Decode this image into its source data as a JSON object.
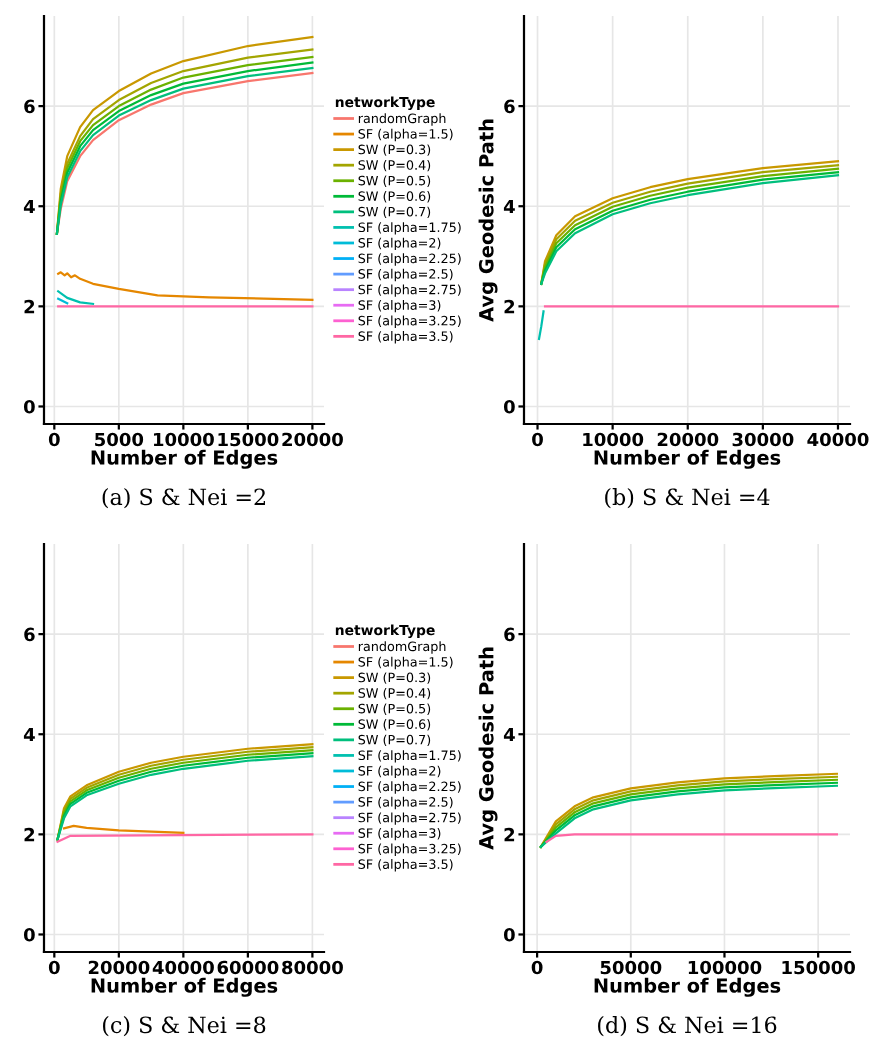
{
  "chart_data": [
    {
      "type": "line",
      "xlabel": "Number of Edges",
      "legend_title": "networkType",
      "legend": "right",
      "grid": true,
      "annotations": [
        "(a) S & Nei =2"
      ],
      "xlim": [
        -800,
        20900
      ],
      "xticks": [
        0,
        5000,
        10000,
        15000,
        20000
      ],
      "ylim": [
        -0.35,
        7.8
      ],
      "yticks": [
        0,
        2,
        4,
        6
      ],
      "series": [
        {
          "name": "randomGraph",
          "color": "#F8766D",
          "x": [
            200,
            500,
            1000,
            2000,
            3000,
            5000,
            7500,
            10000,
            15000,
            20000
          ],
          "values": [
            3.45,
            3.95,
            4.5,
            5.0,
            5.32,
            5.72,
            6.03,
            6.26,
            6.5,
            6.66
          ]
        },
        {
          "name": "SF (alpha=1.5)",
          "color": "#E58700",
          "x": [
            300,
            500,
            800,
            1000,
            1300,
            1600,
            2000,
            3000,
            5000,
            8000,
            12000,
            20000
          ],
          "values": [
            2.65,
            2.68,
            2.62,
            2.66,
            2.58,
            2.62,
            2.55,
            2.45,
            2.35,
            2.22,
            2.18,
            2.13
          ]
        },
        {
          "name": "SW (P=0.3)",
          "color": "#C99800",
          "x": [
            200,
            500,
            1000,
            2000,
            3000,
            5000,
            7500,
            10000,
            15000,
            20000
          ],
          "values": [
            3.45,
            4.35,
            5.0,
            5.58,
            5.92,
            6.3,
            6.65,
            6.9,
            7.2,
            7.38
          ]
        },
        {
          "name": "SW (P=0.4)",
          "color": "#A3A500",
          "x": [
            200,
            500,
            1000,
            2000,
            3000,
            5000,
            7500,
            10000,
            15000,
            20000
          ],
          "values": [
            3.45,
            4.25,
            4.85,
            5.4,
            5.74,
            6.12,
            6.46,
            6.7,
            6.97,
            7.13
          ]
        },
        {
          "name": "SW (P=0.5)",
          "color": "#6BB100",
          "x": [
            200,
            500,
            1000,
            2000,
            3000,
            5000,
            7500,
            10000,
            15000,
            20000
          ],
          "values": [
            3.45,
            4.18,
            4.76,
            5.3,
            5.62,
            6.0,
            6.33,
            6.57,
            6.82,
            6.98
          ]
        },
        {
          "name": "SW (P=0.6)",
          "color": "#00BA38",
          "x": [
            200,
            500,
            1000,
            2000,
            3000,
            5000,
            7500,
            10000,
            15000,
            20000
          ],
          "values": [
            3.45,
            4.1,
            4.67,
            5.2,
            5.52,
            5.9,
            6.22,
            6.45,
            6.7,
            6.87
          ]
        },
        {
          "name": "SW (P=0.7)",
          "color": "#00BF7D",
          "x": [
            200,
            500,
            1000,
            2000,
            3000,
            5000,
            7500,
            10000,
            15000,
            20000
          ],
          "values": [
            3.45,
            4.03,
            4.58,
            5.1,
            5.42,
            5.81,
            6.12,
            6.35,
            6.6,
            6.76
          ]
        },
        {
          "name": "SF (alpha=1.75)",
          "color": "#00C0AF",
          "x": [
            300,
            1000,
            2000,
            3000
          ],
          "values": [
            2.3,
            2.17,
            2.08,
            2.05
          ]
        },
        {
          "name": "SF (alpha=2)",
          "color": "#00BCD8",
          "x": [
            300,
            1000
          ],
          "values": [
            2.15,
            2.06
          ]
        },
        {
          "name": "SF (alpha=2.25)",
          "color": "#00B0F6"
        },
        {
          "name": "SF (alpha=2.5)",
          "color": "#619CFF"
        },
        {
          "name": "SF (alpha=2.75)",
          "color": "#B983FF"
        },
        {
          "name": "SF (alpha=3)",
          "color": "#E76BF3"
        },
        {
          "name": "SF (alpha=3.25)",
          "color": "#FD61D1"
        },
        {
          "name": "SF (alpha=3.5)",
          "color": "#FF67A4",
          "x": [
            300,
            20000
          ],
          "values": [
            2.0,
            2.0
          ]
        }
      ]
    },
    {
      "type": "line",
      "xlabel": "Number of Edges",
      "ylabel": "Avg Geodesic Path",
      "grid": true,
      "annotations": [
        "(b) S & Nei =4"
      ],
      "xlim": [
        -1800,
        41600
      ],
      "xticks": [
        0,
        10000,
        20000,
        30000,
        40000
      ],
      "ylim": [
        -0.35,
        7.8
      ],
      "yticks": [
        0,
        2,
        4,
        6
      ],
      "series": [
        {
          "color": "#C99800",
          "x": [
            500,
            1000,
            2500,
            5000,
            10000,
            15000,
            20000,
            30000,
            40000
          ],
          "values": [
            2.45,
            2.9,
            3.42,
            3.8,
            4.16,
            4.38,
            4.54,
            4.76,
            4.9
          ]
        },
        {
          "color": "#A3A500",
          "x": [
            500,
            1000,
            2500,
            5000,
            10000,
            15000,
            20000,
            30000,
            40000
          ],
          "values": [
            2.45,
            2.84,
            3.34,
            3.71,
            4.07,
            4.29,
            4.45,
            4.68,
            4.82
          ]
        },
        {
          "color": "#6BB100",
          "x": [
            500,
            1000,
            2500,
            5000,
            10000,
            15000,
            20000,
            30000,
            40000
          ],
          "values": [
            2.45,
            2.78,
            3.26,
            3.62,
            3.99,
            4.21,
            4.37,
            4.6,
            4.75
          ]
        },
        {
          "color": "#00BA38",
          "x": [
            500,
            1000,
            2500,
            5000,
            10000,
            15000,
            20000,
            30000,
            40000
          ],
          "values": [
            2.45,
            2.72,
            3.18,
            3.54,
            3.91,
            4.13,
            4.29,
            4.53,
            4.68
          ]
        },
        {
          "color": "#00BF7D",
          "x": [
            500,
            1000,
            2500,
            5000,
            10000,
            15000,
            20000,
            30000,
            40000
          ],
          "values": [
            2.45,
            2.66,
            3.1,
            3.46,
            3.84,
            4.06,
            4.22,
            4.46,
            4.62
          ]
        },
        {
          "color": "#00C0AF",
          "x": [
            200,
            500,
            800
          ],
          "values": [
            1.35,
            1.6,
            1.9
          ]
        },
        {
          "color": "#FF67A4",
          "x": [
            1000,
            40000
          ],
          "values": [
            2.0,
            2.0
          ]
        }
      ]
    },
    {
      "type": "line",
      "xlabel": "Number of Edges",
      "legend_title": "networkType",
      "legend": "right",
      "grid": true,
      "annotations": [
        "(c) S & Nei =8"
      ],
      "xlim": [
        -3200,
        83600
      ],
      "xticks": [
        0,
        20000,
        40000,
        60000,
        80000
      ],
      "ylim": [
        -0.35,
        7.8
      ],
      "yticks": [
        0,
        2,
        4,
        6
      ],
      "series": [
        {
          "name": "randomGraph",
          "color": "#F8766D"
        },
        {
          "name": "SF (alpha=1.5)",
          "color": "#E58700",
          "x": [
            3000,
            6000,
            10000,
            20000,
            40000
          ],
          "values": [
            2.12,
            2.17,
            2.13,
            2.08,
            2.03
          ]
        },
        {
          "name": "SW (P=0.3)",
          "color": "#C99800",
          "x": [
            1000,
            3000,
            5000,
            10000,
            20000,
            30000,
            40000,
            60000,
            80000
          ],
          "values": [
            1.9,
            2.52,
            2.76,
            2.98,
            3.25,
            3.43,
            3.55,
            3.71,
            3.8
          ]
        },
        {
          "name": "SW (P=0.4)",
          "color": "#A3A500",
          "x": [
            1000,
            3000,
            5000,
            10000,
            20000,
            30000,
            40000,
            60000,
            80000
          ],
          "values": [
            1.9,
            2.47,
            2.71,
            2.93,
            3.19,
            3.37,
            3.49,
            3.65,
            3.74
          ]
        },
        {
          "name": "SW (P=0.5)",
          "color": "#6BB100",
          "x": [
            1000,
            3000,
            5000,
            10000,
            20000,
            30000,
            40000,
            60000,
            80000
          ],
          "values": [
            1.9,
            2.42,
            2.66,
            2.88,
            3.13,
            3.31,
            3.43,
            3.59,
            3.68
          ]
        },
        {
          "name": "SW (P=0.6)",
          "color": "#00BA38",
          "x": [
            1000,
            3000,
            5000,
            10000,
            20000,
            30000,
            40000,
            60000,
            80000
          ],
          "values": [
            1.9,
            2.37,
            2.61,
            2.83,
            3.07,
            3.25,
            3.37,
            3.53,
            3.62
          ]
        },
        {
          "name": "SW (P=0.7)",
          "color": "#00BF7D",
          "x": [
            1000,
            3000,
            5000,
            10000,
            20000,
            30000,
            40000,
            60000,
            80000
          ],
          "values": [
            1.9,
            2.32,
            2.56,
            2.78,
            3.01,
            3.19,
            3.31,
            3.47,
            3.56
          ]
        },
        {
          "name": "SF (alpha=1.75)",
          "color": "#00C0AF"
        },
        {
          "name": "SF (alpha=2)",
          "color": "#00BCD8"
        },
        {
          "name": "SF (alpha=2.25)",
          "color": "#00B0F6"
        },
        {
          "name": "SF (alpha=2.5)",
          "color": "#619CFF"
        },
        {
          "name": "SF (alpha=2.75)",
          "color": "#B983FF"
        },
        {
          "name": "SF (alpha=3)",
          "color": "#E76BF3"
        },
        {
          "name": "SF (alpha=3.25)",
          "color": "#FD61D1"
        },
        {
          "name": "SF (alpha=3.5)",
          "color": "#FF67A4",
          "x": [
            1000,
            5000,
            80000
          ],
          "values": [
            1.85,
            1.97,
            2.0
          ]
        }
      ]
    },
    {
      "type": "line",
      "xlabel": "Number of Edges",
      "ylabel": "Avg Geodesic Path",
      "grid": true,
      "annotations": [
        "(d) S & Nei =16"
      ],
      "xlim": [
        -7000,
        167000
      ],
      "xticks": [
        0,
        50000,
        100000,
        150000
      ],
      "ylim": [
        -0.35,
        7.8
      ],
      "yticks": [
        0,
        2,
        4,
        6
      ],
      "series": [
        {
          "color": "#C99800",
          "x": [
            2000,
            10000,
            20000,
            30000,
            50000,
            75000,
            100000,
            130000,
            160000
          ],
          "values": [
            1.75,
            2.26,
            2.56,
            2.74,
            2.92,
            3.04,
            3.12,
            3.17,
            3.21
          ]
        },
        {
          "color": "#A3A500",
          "x": [
            2000,
            10000,
            20000,
            30000,
            50000,
            75000,
            100000,
            130000,
            160000
          ],
          "values": [
            1.75,
            2.2,
            2.5,
            2.68,
            2.86,
            2.98,
            3.06,
            3.11,
            3.15
          ]
        },
        {
          "color": "#6BB100",
          "x": [
            2000,
            10000,
            20000,
            30000,
            50000,
            75000,
            100000,
            130000,
            160000
          ],
          "values": [
            1.75,
            2.14,
            2.44,
            2.62,
            2.8,
            2.92,
            3.0,
            3.05,
            3.09
          ]
        },
        {
          "color": "#00BA38",
          "x": [
            2000,
            10000,
            20000,
            30000,
            50000,
            75000,
            100000,
            130000,
            160000
          ],
          "values": [
            1.75,
            2.08,
            2.38,
            2.56,
            2.74,
            2.86,
            2.94,
            2.99,
            3.03
          ]
        },
        {
          "color": "#00BF7D",
          "x": [
            2000,
            10000,
            20000,
            30000,
            50000,
            75000,
            100000,
            130000,
            160000
          ],
          "values": [
            1.75,
            2.02,
            2.32,
            2.5,
            2.68,
            2.8,
            2.88,
            2.93,
            2.97
          ]
        },
        {
          "color": "#FF67A4",
          "x": [
            5000,
            10000,
            20000,
            160000
          ],
          "values": [
            1.85,
            1.97,
            2.0,
            2.0
          ]
        }
      ]
    }
  ]
}
